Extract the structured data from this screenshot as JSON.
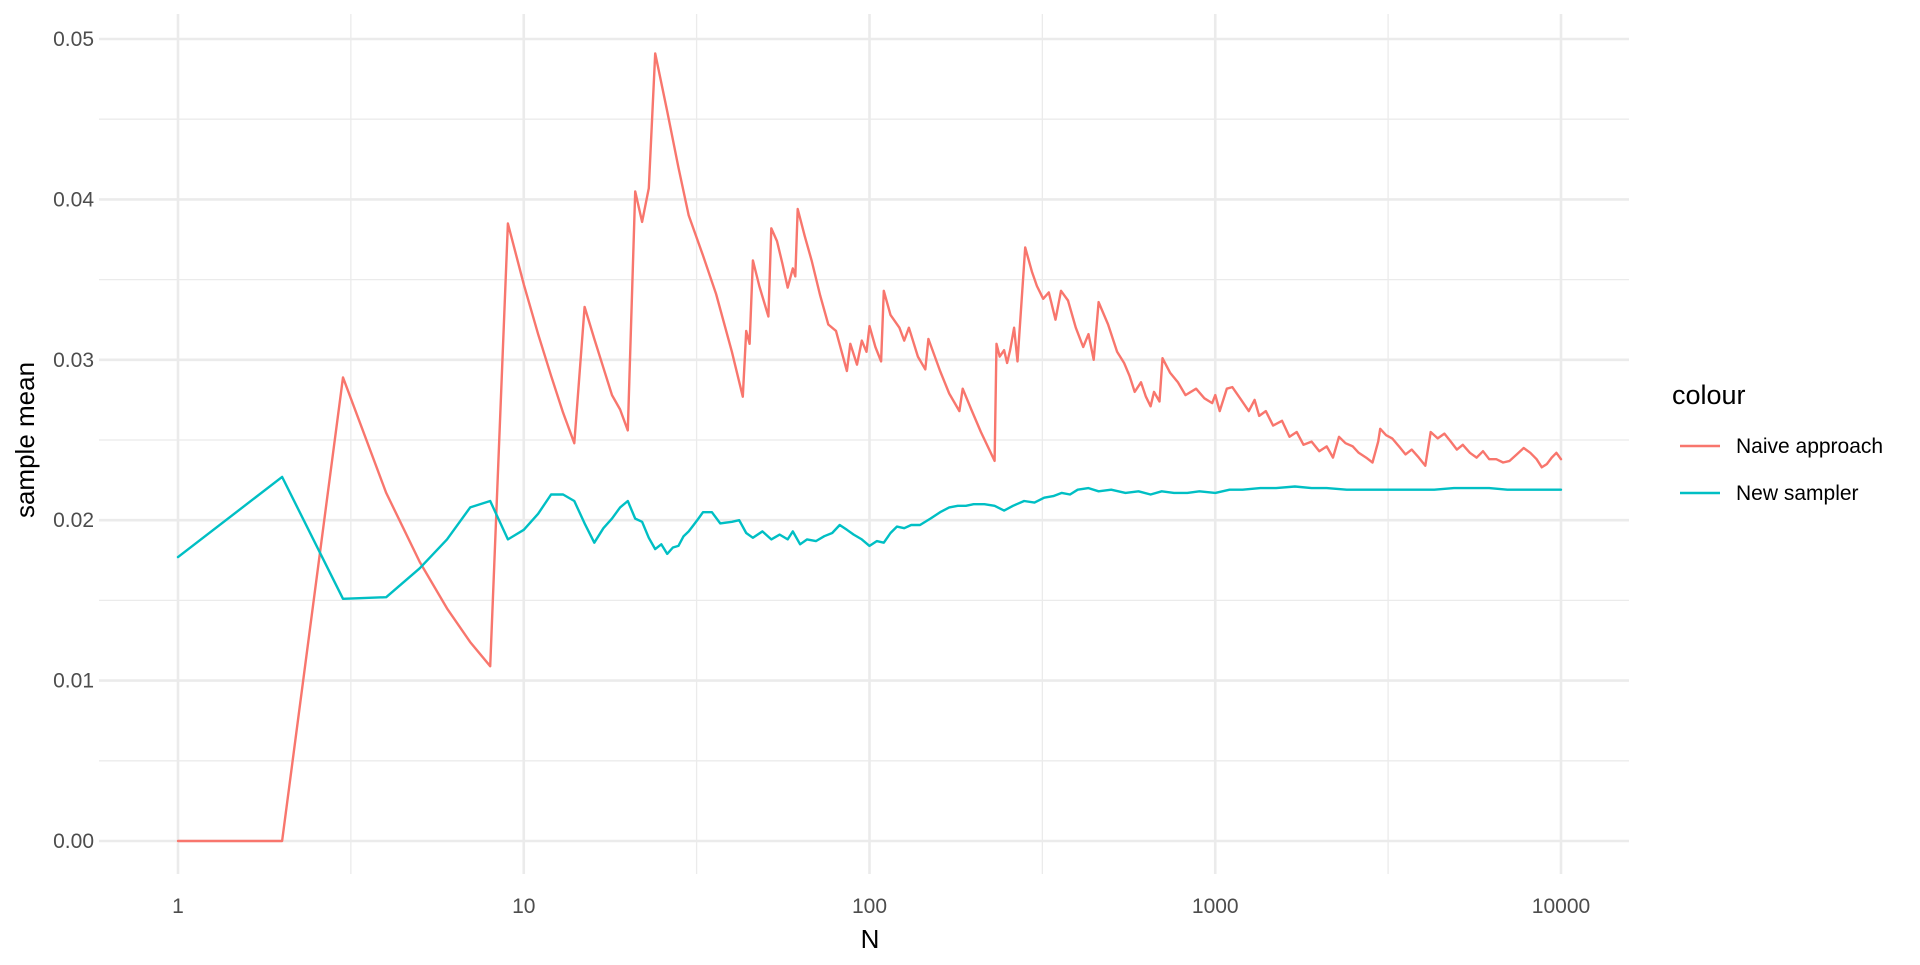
{
  "chart_data": {
    "type": "line",
    "title": "",
    "xlabel": "N",
    "ylabel": "sample mean",
    "x_scale": "log10",
    "xlim": [
      1,
      10000
    ],
    "ylim": [
      0,
      0.05
    ],
    "x_ticks": [
      1,
      10,
      100,
      1000,
      10000
    ],
    "x_tick_labels": [
      "1",
      "10",
      "100",
      "1000",
      "10000"
    ],
    "x_minor_ticks": [
      3.162,
      31.62,
      316.2,
      3162
    ],
    "y_ticks": [
      0,
      0.01,
      0.02,
      0.03,
      0.04,
      0.05
    ],
    "y_tick_labels": [
      "0.00",
      "0.01",
      "0.02",
      "0.03",
      "0.04",
      "0.05"
    ],
    "y_minor_ticks": [
      0.005,
      0.015,
      0.025,
      0.035,
      0.045
    ],
    "grid": true,
    "legend": {
      "title": "colour",
      "position": "right"
    },
    "series": [
      {
        "name": "Naive approach",
        "color": "#F8766D",
        "points": [
          [
            1,
            0
          ],
          [
            2,
            0
          ],
          [
            3,
            0.0289
          ],
          [
            4,
            0.0217
          ],
          [
            5,
            0.0174
          ],
          [
            6,
            0.0145
          ],
          [
            7,
            0.0124
          ],
          [
            8,
            0.0109
          ],
          [
            9,
            0.0385
          ],
          [
            10,
            0.0347
          ],
          [
            11,
            0.0316
          ],
          [
            12,
            0.029
          ],
          [
            13,
            0.0267
          ],
          [
            14,
            0.0248
          ],
          [
            15,
            0.0333
          ],
          [
            16,
            0.0313
          ],
          [
            17,
            0.0295
          ],
          [
            18,
            0.0278
          ],
          [
            19,
            0.0269
          ],
          [
            20,
            0.0256
          ],
          [
            21,
            0.0405
          ],
          [
            22,
            0.0386
          ],
          [
            23,
            0.0407
          ],
          [
            24,
            0.0491
          ],
          [
            26,
            0.0455
          ],
          [
            28,
            0.042
          ],
          [
            30,
            0.039
          ],
          [
            33,
            0.0365
          ],
          [
            36,
            0.0341
          ],
          [
            40,
            0.0305
          ],
          [
            43,
            0.0277
          ],
          [
            44,
            0.0318
          ],
          [
            45,
            0.031
          ],
          [
            46,
            0.0362
          ],
          [
            48,
            0.0346
          ],
          [
            51,
            0.0327
          ],
          [
            52,
            0.0382
          ],
          [
            54,
            0.0374
          ],
          [
            56,
            0.036
          ],
          [
            58,
            0.0345
          ],
          [
            60,
            0.0357
          ],
          [
            61,
            0.0352
          ],
          [
            62,
            0.0394
          ],
          [
            65,
            0.0377
          ],
          [
            68,
            0.0362
          ],
          [
            72,
            0.034
          ],
          [
            76,
            0.0322
          ],
          [
            80,
            0.0318
          ],
          [
            86,
            0.0293
          ],
          [
            88,
            0.031
          ],
          [
            92,
            0.0297
          ],
          [
            95,
            0.0312
          ],
          [
            98,
            0.0305
          ],
          [
            100,
            0.0321
          ],
          [
            104,
            0.0308
          ],
          [
            108,
            0.0299
          ],
          [
            110,
            0.0343
          ],
          [
            115,
            0.0328
          ],
          [
            122,
            0.032
          ],
          [
            126,
            0.0312
          ],
          [
            130,
            0.032
          ],
          [
            138,
            0.0302
          ],
          [
            145,
            0.0294
          ],
          [
            148,
            0.0313
          ],
          [
            160,
            0.0293
          ],
          [
            170,
            0.0279
          ],
          [
            182,
            0.0268
          ],
          [
            186,
            0.0282
          ],
          [
            197,
            0.0269
          ],
          [
            210,
            0.0255
          ],
          [
            230,
            0.0237
          ],
          [
            233,
            0.031
          ],
          [
            238,
            0.0302
          ],
          [
            245,
            0.0306
          ],
          [
            250,
            0.0298
          ],
          [
            255,
            0.0306
          ],
          [
            262,
            0.032
          ],
          [
            268,
            0.0299
          ],
          [
            282,
            0.037
          ],
          [
            295,
            0.0355
          ],
          [
            305,
            0.0346
          ],
          [
            318,
            0.0338
          ],
          [
            330,
            0.0342
          ],
          [
            345,
            0.0325
          ],
          [
            358,
            0.0343
          ],
          [
            375,
            0.0337
          ],
          [
            395,
            0.032
          ],
          [
            415,
            0.0308
          ],
          [
            430,
            0.0316
          ],
          [
            445,
            0.03
          ],
          [
            460,
            0.0336
          ],
          [
            490,
            0.0322
          ],
          [
            520,
            0.0305
          ],
          [
            545,
            0.0298
          ],
          [
            565,
            0.029
          ],
          [
            585,
            0.028
          ],
          [
            610,
            0.0286
          ],
          [
            630,
            0.0277
          ],
          [
            650,
            0.0271
          ],
          [
            665,
            0.028
          ],
          [
            690,
            0.0274
          ],
          [
            704,
            0.0301
          ],
          [
            740,
            0.0292
          ],
          [
            780,
            0.0286
          ],
          [
            820,
            0.0278
          ],
          [
            880,
            0.0282
          ],
          [
            930,
            0.0276
          ],
          [
            980,
            0.0273
          ],
          [
            1000,
            0.0278
          ],
          [
            1030,
            0.0268
          ],
          [
            1080,
            0.0282
          ],
          [
            1120,
            0.0283
          ],
          [
            1180,
            0.0276
          ],
          [
            1250,
            0.0268
          ],
          [
            1300,
            0.0275
          ],
          [
            1340,
            0.0265
          ],
          [
            1400,
            0.0268
          ],
          [
            1470,
            0.0259
          ],
          [
            1560,
            0.0262
          ],
          [
            1640,
            0.0252
          ],
          [
            1720,
            0.0255
          ],
          [
            1800,
            0.0247
          ],
          [
            1900,
            0.0249
          ],
          [
            2000,
            0.0243
          ],
          [
            2100,
            0.0246
          ],
          [
            2190,
            0.0239
          ],
          [
            2280,
            0.0252
          ],
          [
            2380,
            0.0248
          ],
          [
            2500,
            0.0246
          ],
          [
            2600,
            0.0242
          ],
          [
            2730,
            0.0239
          ],
          [
            2850,
            0.0236
          ],
          [
            2960,
            0.0249
          ],
          [
            3000,
            0.0257
          ],
          [
            3120,
            0.0253
          ],
          [
            3250,
            0.0251
          ],
          [
            3400,
            0.0246
          ],
          [
            3550,
            0.0241
          ],
          [
            3700,
            0.0244
          ],
          [
            3880,
            0.0239
          ],
          [
            4050,
            0.0234
          ],
          [
            4200,
            0.0255
          ],
          [
            4400,
            0.0251
          ],
          [
            4600,
            0.0254
          ],
          [
            4800,
            0.0249
          ],
          [
            5000,
            0.0244
          ],
          [
            5200,
            0.0247
          ],
          [
            5450,
            0.0242
          ],
          [
            5700,
            0.0239
          ],
          [
            5950,
            0.0243
          ],
          [
            6200,
            0.0238
          ],
          [
            6500,
            0.0238
          ],
          [
            6800,
            0.0236
          ],
          [
            7100,
            0.0237
          ],
          [
            7450,
            0.0241
          ],
          [
            7800,
            0.0245
          ],
          [
            8150,
            0.0242
          ],
          [
            8500,
            0.0238
          ],
          [
            8800,
            0.0233
          ],
          [
            9100,
            0.0235
          ],
          [
            9400,
            0.0239
          ],
          [
            9700,
            0.0242
          ],
          [
            10000,
            0.0238
          ]
        ]
      },
      {
        "name": "New sampler",
        "color": "#00BFC4",
        "points": [
          [
            1,
            0.0177
          ],
          [
            2,
            0.0227
          ],
          [
            3,
            0.0151
          ],
          [
            4,
            0.0152
          ],
          [
            5,
            0.017
          ],
          [
            6,
            0.0188
          ],
          [
            7,
            0.0208
          ],
          [
            8,
            0.0212
          ],
          [
            9,
            0.0188
          ],
          [
            10,
            0.0194
          ],
          [
            11,
            0.0204
          ],
          [
            12,
            0.0216
          ],
          [
            13,
            0.0216
          ],
          [
            14,
            0.0212
          ],
          [
            15,
            0.0198
          ],
          [
            16,
            0.0186
          ],
          [
            17,
            0.0195
          ],
          [
            18,
            0.0201
          ],
          [
            19,
            0.0208
          ],
          [
            20,
            0.0212
          ],
          [
            21,
            0.0201
          ],
          [
            22,
            0.0199
          ],
          [
            23,
            0.0189
          ],
          [
            24,
            0.0182
          ],
          [
            25,
            0.0185
          ],
          [
            26,
            0.0179
          ],
          [
            27,
            0.0183
          ],
          [
            28,
            0.0184
          ],
          [
            29,
            0.019
          ],
          [
            30,
            0.0193
          ],
          [
            31,
            0.0197
          ],
          [
            32,
            0.0201
          ],
          [
            33,
            0.0205
          ],
          [
            35,
            0.0205
          ],
          [
            37,
            0.0198
          ],
          [
            40,
            0.0199
          ],
          [
            42,
            0.02
          ],
          [
            44,
            0.0192
          ],
          [
            46,
            0.0189
          ],
          [
            49,
            0.0193
          ],
          [
            52,
            0.0188
          ],
          [
            55,
            0.0191
          ],
          [
            58,
            0.0188
          ],
          [
            60,
            0.0193
          ],
          [
            63,
            0.0185
          ],
          [
            66,
            0.0188
          ],
          [
            70,
            0.0187
          ],
          [
            74,
            0.019
          ],
          [
            78,
            0.0192
          ],
          [
            82,
            0.0197
          ],
          [
            86,
            0.0194
          ],
          [
            90,
            0.0191
          ],
          [
            95,
            0.0188
          ],
          [
            100,
            0.0184
          ],
          [
            105,
            0.0187
          ],
          [
            110,
            0.0186
          ],
          [
            115,
            0.0192
          ],
          [
            120,
            0.0196
          ],
          [
            126,
            0.0195
          ],
          [
            132,
            0.0197
          ],
          [
            140,
            0.0197
          ],
          [
            150,
            0.0201
          ],
          [
            160,
            0.0205
          ],
          [
            170,
            0.0208
          ],
          [
            180,
            0.0209
          ],
          [
            190,
            0.0209
          ],
          [
            200,
            0.021
          ],
          [
            215,
            0.021
          ],
          [
            230,
            0.0209
          ],
          [
            245,
            0.0206
          ],
          [
            260,
            0.0209
          ],
          [
            280,
            0.0212
          ],
          [
            300,
            0.0211
          ],
          [
            320,
            0.0214
          ],
          [
            340,
            0.0215
          ],
          [
            360,
            0.0217
          ],
          [
            380,
            0.0216
          ],
          [
            400,
            0.0219
          ],
          [
            430,
            0.022
          ],
          [
            460,
            0.0218
          ],
          [
            500,
            0.0219
          ],
          [
            550,
            0.0217
          ],
          [
            600,
            0.0218
          ],
          [
            650,
            0.0216
          ],
          [
            700,
            0.0218
          ],
          [
            760,
            0.0217
          ],
          [
            830,
            0.0217
          ],
          [
            900,
            0.0218
          ],
          [
            1000,
            0.0217
          ],
          [
            1100,
            0.0219
          ],
          [
            1200,
            0.0219
          ],
          [
            1350,
            0.022
          ],
          [
            1500,
            0.022
          ],
          [
            1700,
            0.0221
          ],
          [
            1900,
            0.022
          ],
          [
            2100,
            0.022
          ],
          [
            2400,
            0.0219
          ],
          [
            2700,
            0.0219
          ],
          [
            3000,
            0.0219
          ],
          [
            3400,
            0.0219
          ],
          [
            3800,
            0.0219
          ],
          [
            4300,
            0.0219
          ],
          [
            4900,
            0.022
          ],
          [
            5500,
            0.022
          ],
          [
            6200,
            0.022
          ],
          [
            7000,
            0.0219
          ],
          [
            8000,
            0.0219
          ],
          [
            9000,
            0.0219
          ],
          [
            10000,
            0.0219
          ]
        ]
      }
    ]
  }
}
